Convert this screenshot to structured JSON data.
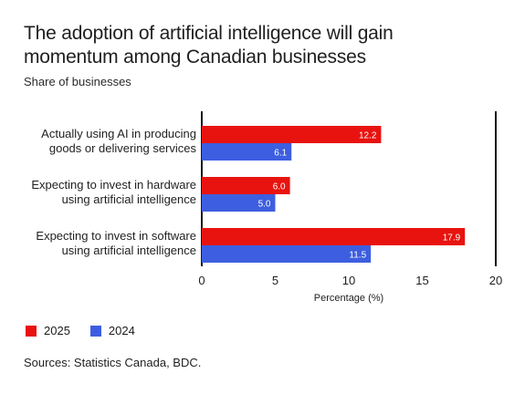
{
  "title_line1": "The adoption of artificial intelligence will gain",
  "title_line2": "momentum among Canadian businesses",
  "subtitle": "Share of businesses",
  "source": "Sources: Statistics Canada, BDC.",
  "colors": {
    "2025": "#e8130f",
    "2024": "#3d5ee0",
    "axis": "#1a1a1a"
  },
  "chart_data": {
    "type": "bar",
    "orientation": "horizontal",
    "categories": [
      [
        "Actually using AI  in producing",
        "goods or delivering services"
      ],
      [
        "Expecting to invest in hardware",
        "using artificial intelligence"
      ],
      [
        "Expecting to invest in software",
        "using artificial intelligence"
      ]
    ],
    "series": [
      {
        "name": "2025",
        "values": [
          12.2,
          6.0,
          17.9
        ],
        "labels": [
          "12.2",
          "6.0",
          "17.9"
        ]
      },
      {
        "name": "2024",
        "values": [
          6.1,
          5.0,
          11.5
        ],
        "labels": [
          "6.1",
          "5.0",
          "11.5"
        ]
      }
    ],
    "xlabel": "Percentage (%)",
    "ylabel": "",
    "xlim": [
      0,
      20
    ],
    "xticks": [
      0,
      5,
      10,
      15,
      20
    ],
    "grid": false,
    "legend_position": "bottom-left"
  }
}
